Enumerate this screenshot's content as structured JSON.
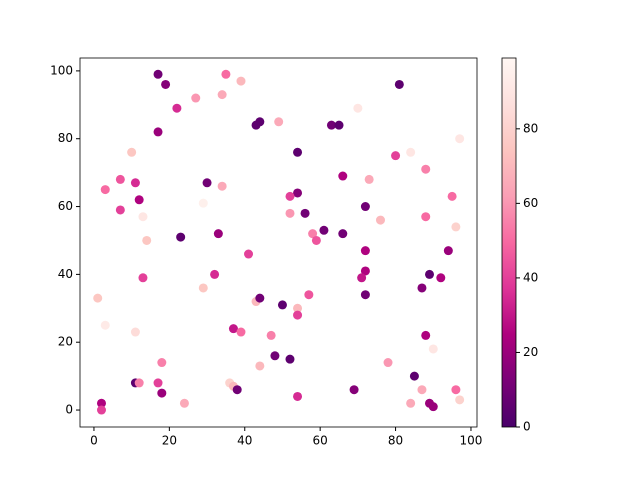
{
  "chart_data": {
    "type": "scatter",
    "colormap": "RdPu_r",
    "x": [
      17,
      19,
      35,
      39,
      81,
      22,
      27,
      34,
      70,
      43,
      44,
      49,
      63,
      65,
      17,
      97,
      10,
      54,
      80,
      84,
      3,
      7,
      11,
      30,
      34,
      66,
      73,
      88,
      54,
      52,
      95,
      12,
      7,
      29,
      52,
      56,
      72,
      13,
      76,
      88,
      96,
      23,
      33,
      14,
      58,
      59,
      61,
      66,
      41,
      72,
      94,
      13,
      32,
      72,
      71,
      89,
      92,
      29,
      87,
      57,
      72,
      1,
      43,
      44,
      50,
      54,
      54,
      3,
      37,
      39,
      11,
      47,
      88,
      48,
      52,
      90,
      18,
      44,
      78,
      85,
      11,
      12,
      17,
      36,
      37,
      38,
      69,
      87,
      96,
      18,
      2,
      24,
      84,
      89,
      90,
      2,
      54,
      97
    ],
    "y": [
      99,
      96,
      99,
      97,
      96,
      89,
      92,
      93,
      89,
      84,
      85,
      85,
      84,
      84,
      82,
      80,
      76,
      76,
      75,
      76,
      65,
      68,
      67,
      67,
      66,
      69,
      68,
      71,
      64,
      63,
      63,
      62,
      59,
      61,
      58,
      58,
      60,
      57,
      56,
      57,
      54,
      51,
      52,
      50,
      52,
      50,
      53,
      52,
      46,
      47,
      47,
      39,
      40,
      41,
      39,
      40,
      39,
      36,
      36,
      34,
      34,
      33,
      32,
      33,
      31,
      30,
      28,
      25,
      24,
      23,
      23,
      22,
      22,
      16,
      15,
      18,
      14,
      13,
      14,
      10,
      8,
      8,
      8,
      8,
      7,
      6,
      6,
      6,
      6,
      5,
      2,
      2,
      2,
      2,
      1,
      0,
      4,
      3
    ],
    "c": [
      10,
      15,
      50,
      70,
      5,
      35,
      60,
      65,
      90,
      5,
      5,
      65,
      10,
      5,
      20,
      90,
      75,
      5,
      40,
      90,
      50,
      45,
      35,
      10,
      65,
      25,
      65,
      55,
      15,
      40,
      50,
      25,
      40,
      95,
      60,
      10,
      10,
      90,
      70,
      50,
      80,
      5,
      20,
      75,
      55,
      45,
      10,
      10,
      40,
      25,
      20,
      40,
      35,
      25,
      30,
      5,
      25,
      75,
      15,
      45,
      10,
      75,
      70,
      10,
      5,
      70,
      40,
      92,
      30,
      50,
      85,
      55,
      25,
      10,
      5,
      90,
      55,
      70,
      60,
      5,
      5,
      55,
      40,
      80,
      70,
      10,
      15,
      65,
      50,
      20,
      25,
      65,
      65,
      20,
      20,
      40,
      35,
      80
    ],
    "xlim": [
      -3.7,
      101.6
    ],
    "ylim": [
      -5,
      103.8
    ],
    "xticks": [
      0,
      20,
      40,
      60,
      80,
      100
    ],
    "yticks": [
      0,
      20,
      40,
      60,
      80,
      100
    ],
    "clim": [
      0,
      99
    ],
    "cticks": [
      0,
      20,
      40,
      60,
      80
    ]
  }
}
